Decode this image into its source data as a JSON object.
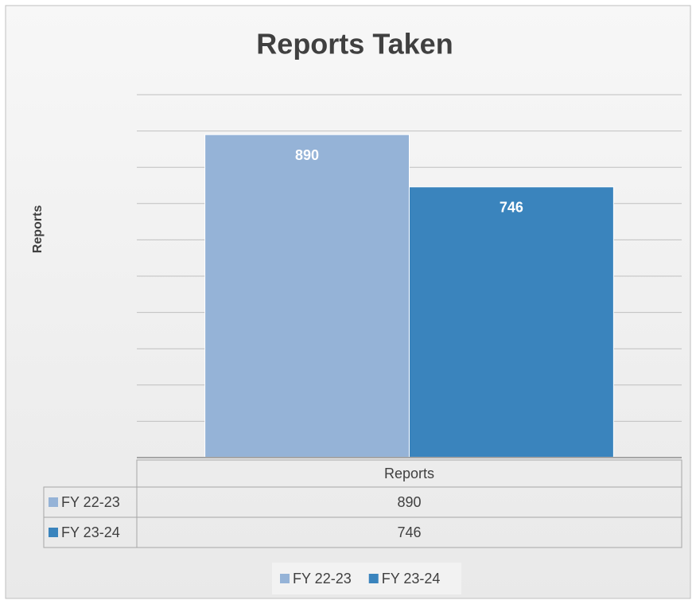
{
  "chart_data": {
    "type": "bar",
    "title": "Reports Taken",
    "y_label": "Reports",
    "categories": [
      "Reports"
    ],
    "series": [
      {
        "name": "FY 22-23",
        "color": "#95b3d7",
        "values": [
          890
        ]
      },
      {
        "name": "FY 23-24",
        "color": "#3a84bd",
        "values": [
          746
        ]
      }
    ],
    "ylim": [
      0,
      1000
    ],
    "yticks": [
      0,
      100,
      200,
      300,
      400,
      500,
      600,
      700,
      800,
      900,
      1000
    ],
    "grid": true,
    "data_table": true,
    "legend": "bottom"
  }
}
